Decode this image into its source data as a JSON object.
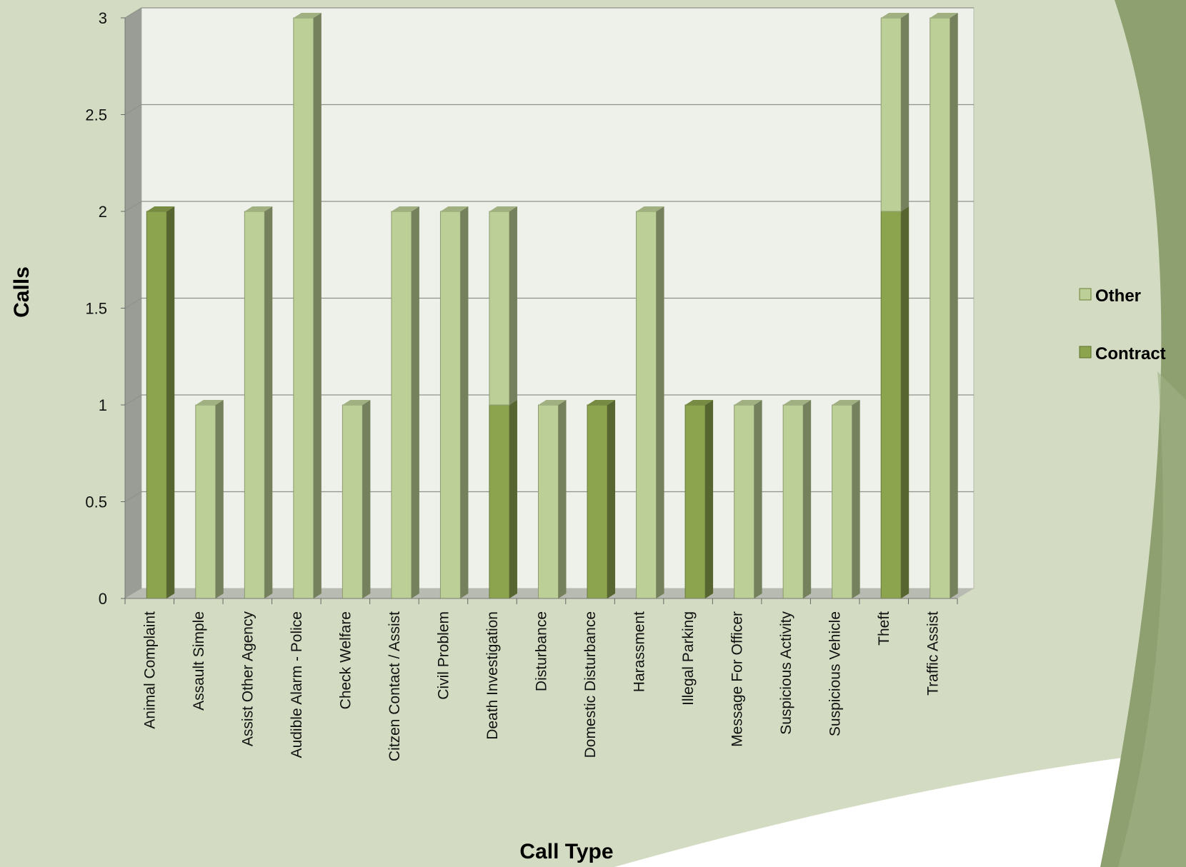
{
  "chart_data": {
    "type": "bar",
    "stacked": true,
    "three_d": true,
    "categories": [
      "Animal Complaint",
      "Assault Simple",
      "Assist Other Agency",
      "Audible Alarm - Police",
      "Check Welfare",
      "Citzen Contact / Assist",
      "Civil Problem",
      "Death Investigation",
      "Disturbance",
      "Domestic Disturbance",
      "Harassment",
      "Illegal Parking",
      "Message For Officer",
      "Suspicious Activity",
      "Suspicious Vehicle",
      "Theft",
      "Traffic Assist"
    ],
    "series": [
      {
        "name": "Contract",
        "color": "#8ca44e",
        "values": [
          2,
          0,
          0,
          0,
          0,
          0,
          0,
          1,
          0,
          1,
          0,
          1,
          0,
          0,
          0,
          2,
          0
        ]
      },
      {
        "name": "Other",
        "color": "#bccf96",
        "values": [
          0,
          1,
          2,
          3,
          1,
          2,
          2,
          1,
          1,
          0,
          2,
          0,
          1,
          1,
          1,
          1,
          3
        ]
      }
    ],
    "title": "",
    "xlabel": "Call Type",
    "ylabel": "Calls",
    "ylim": [
      0,
      3
    ],
    "yticks": [
      "0",
      "0.5",
      "1",
      "1.5",
      "2",
      "2.5",
      "3"
    ],
    "grid": true,
    "legend_position": "right",
    "legend_order": [
      "Other",
      "Contract"
    ],
    "colors": {
      "background": "#d3dcc2",
      "plot_wall": "#eef1ea",
      "floor": "#b8bbb1",
      "side_wall": "#9a9c96",
      "gridline": "#8e938a"
    }
  }
}
